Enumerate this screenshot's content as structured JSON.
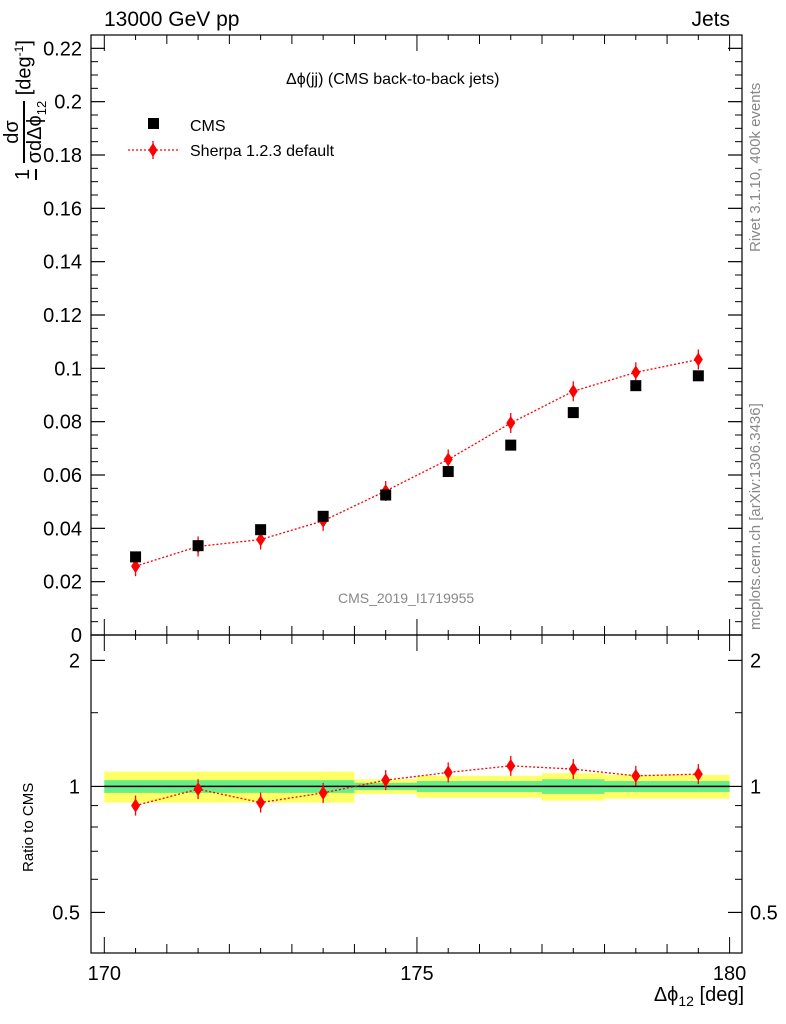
{
  "header": {
    "left": "13000 GeV pp",
    "right": "Jets"
  },
  "side_labels": {
    "top": "Rivet 3.1.10,  400k events",
    "bottom": "mcplots.cern.ch [arXiv:1306.3436]"
  },
  "chart_data": [
    {
      "type": "scatter",
      "title": "Δϕ(jj) (CMS back-to-back jets)",
      "watermark": "CMS_2019_I1719955",
      "ylabel_parts": {
        "prefix": "1",
        "num": "dσ",
        "den1": "σ",
        "den2": "dΔϕ",
        "sub": "12",
        "unit": "[deg",
        "exp": "-1",
        "close": "]"
      },
      "xlim": [
        170,
        180
      ],
      "ylim": [
        0,
        0.225
      ],
      "yticks": [
        "0",
        "0.02",
        "0.04",
        "0.06",
        "0.08",
        "0.1",
        "0.12",
        "0.14",
        "0.16",
        "0.18",
        "0.2",
        "0.22"
      ],
      "x": [
        170.5,
        171.5,
        172.5,
        173.5,
        174.5,
        175.5,
        176.5,
        177.5,
        178.5,
        179.5
      ],
      "series": [
        {
          "name": "CMS",
          "color": "#000000",
          "marker": "square",
          "values": [
            0.0293,
            0.0335,
            0.0395,
            0.0445,
            0.0525,
            0.0613,
            0.0712,
            0.0834,
            0.0935,
            0.0972
          ]
        },
        {
          "name": "Sherpa 1.2.3 default",
          "color": "#ff0000",
          "marker": "diamond",
          "line": "dotted",
          "values": [
            0.0258,
            0.0332,
            0.0358,
            0.0428,
            0.054,
            0.0658,
            0.0795,
            0.0914,
            0.0985,
            0.1033
          ]
        }
      ],
      "legend_position": "top-left"
    },
    {
      "type": "scatter",
      "ylabel": "Ratio to CMS",
      "xlabel_parts": {
        "main": "Δϕ",
        "sub": "12",
        "unit": "[deg]"
      },
      "xlim": [
        170,
        180
      ],
      "ylim": [
        0.4,
        2.3
      ],
      "ylog": true,
      "xticks": [
        "170",
        "175",
        "180"
      ],
      "yticks": [
        "0.5",
        "1",
        "2"
      ],
      "x": [
        170.5,
        171.5,
        172.5,
        173.5,
        174.5,
        175.5,
        176.5,
        177.5,
        178.5,
        179.5
      ],
      "series": [
        {
          "name": "Sherpa 1.2.3 default",
          "color": "#ff0000",
          "values": [
            0.9,
            0.985,
            0.915,
            0.965,
            1.035,
            1.08,
            1.12,
            1.1,
            1.06,
            1.07
          ]
        }
      ],
      "reference_line": 1,
      "uncertainty_band": {
        "inner_color": "#66ee88",
        "outer_color": "#ffff66",
        "edges": [
          170,
          174,
          175,
          177,
          178,
          180
        ],
        "inner_halfwidth": [
          0.035,
          0.02,
          0.03,
          0.04,
          0.03
        ],
        "outer_halfwidth": [
          0.085,
          0.04,
          0.06,
          0.075,
          0.065
        ]
      }
    }
  ]
}
